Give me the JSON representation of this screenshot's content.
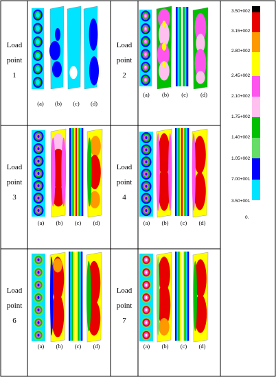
{
  "figure": {
    "load_word_1": "Load",
    "load_word_2": "point",
    "cells": [
      {
        "point": "1"
      },
      {
        "point": "2"
      },
      {
        "point": "3"
      },
      {
        "point": "4"
      },
      {
        "point": "6"
      },
      {
        "point": "7"
      }
    ],
    "sub_labels": [
      "(a)",
      "(b)",
      "(c)",
      "(d)"
    ]
  },
  "legend": {
    "labels": [
      "3.50+002",
      "3.15+002",
      "2.80+002",
      "2.45+002",
      "2.10+002",
      "1.75+002",
      "1.40+002",
      "1.05+002",
      "7.00+001",
      "3.50+001",
      "0."
    ],
    "colors": [
      "#000000",
      "#e80000",
      "#ff9900",
      "#ffff00",
      "#ff55ee",
      "#ffc0f0",
      "#00c000",
      "#66dd66",
      "#0000ff",
      "#00e4ff",
      "#ffffff"
    ]
  }
}
